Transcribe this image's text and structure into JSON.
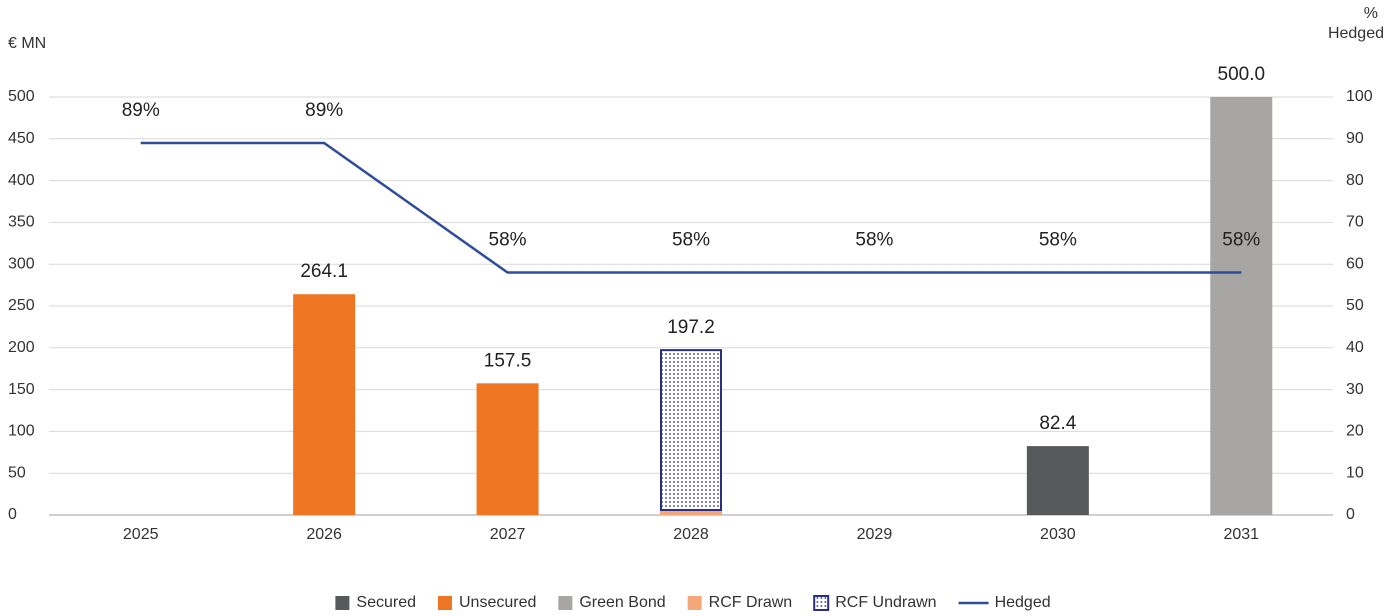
{
  "chart_data": {
    "type": "bar",
    "stacked": true,
    "y_label": "€ MN",
    "y2_label": [
      "%",
      "Hedged"
    ],
    "categories": [
      "2025",
      "2026",
      "2027",
      "2028",
      "2029",
      "2030",
      "2031"
    ],
    "series": [
      {
        "name": "Secured",
        "color": "#58595b",
        "values": [
          0,
          0,
          0,
          0,
          0,
          82.4,
          0
        ]
      },
      {
        "name": "Unsecured",
        "color": "#ee7623",
        "values": [
          0,
          264.1,
          157.5,
          0,
          0,
          0,
          0
        ]
      },
      {
        "name": "Green Bond",
        "color": "#a7a6a5",
        "values": [
          0,
          0,
          0,
          0,
          0,
          0,
          500
        ]
      },
      {
        "name": "RCF Drawn",
        "color": "#f4a87a",
        "values": [
          0,
          0,
          0,
          6,
          0,
          0,
          0
        ]
      },
      {
        "name": "RCF Undrawn",
        "color": "#2b2f7e",
        "pattern": "dots",
        "values": [
          0,
          0,
          0,
          191.2,
          0,
          0,
          0
        ]
      },
      {
        "name": "Hedged",
        "color": "#2f4b9c",
        "type": "line",
        "axis": "y2",
        "values": [
          89,
          89,
          58,
          58,
          58,
          58,
          58
        ],
        "value_labels": [
          "89%",
          "89%",
          "58%",
          "58%",
          "58%",
          "58%",
          "58%"
        ]
      }
    ],
    "totals": [
      null,
      264.1,
      157.5,
      197.2,
      null,
      82.4,
      500
    ],
    "total_labels": [
      null,
      "264.1",
      "157.5",
      "197.2",
      null,
      "82.4",
      "500.0"
    ],
    "ylim": [
      0,
      500
    ],
    "yticks": [
      0,
      50,
      100,
      150,
      200,
      250,
      300,
      350,
      400,
      450,
      500
    ],
    "y2lim": [
      0,
      100
    ],
    "y2ticks": [
      0,
      10,
      20,
      30,
      40,
      50,
      60,
      70,
      80,
      90,
      100
    ],
    "grid": true,
    "legend": "bottom"
  }
}
